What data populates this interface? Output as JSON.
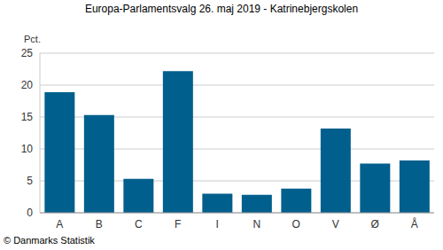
{
  "chart_data": {
    "type": "bar",
    "title": "Europa-Parlamentsvalg 26. maj 2019 - Katrinebjergskolen",
    "y_label": "Pct.",
    "source": "© Danmarks Statistik",
    "categories": [
      "A",
      "B",
      "C",
      "F",
      "I",
      "N",
      "O",
      "V",
      "Ø",
      "Å"
    ],
    "values": [
      18.9,
      15.3,
      5.3,
      22.2,
      3.0,
      2.8,
      3.8,
      13.2,
      7.7,
      8.2
    ],
    "color": "#005f8c",
    "ylim": [
      0,
      25
    ],
    "yticks": [
      0,
      5,
      10,
      15,
      20,
      25
    ],
    "grid": true
  }
}
